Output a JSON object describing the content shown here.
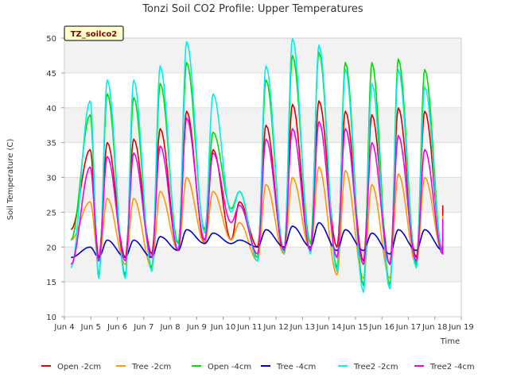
{
  "chart_data": {
    "type": "line",
    "title": "Tonzi Soil CO2 Profile: Upper Temperatures",
    "xlabel": "Time",
    "ylabel": "Soil Temperature (C)",
    "tag": "TZ_soilco2",
    "xlim": [
      4,
      19
    ],
    "ylim": [
      10,
      50
    ],
    "xticks": [
      4,
      5,
      6,
      7,
      8,
      9,
      10,
      11,
      12,
      13,
      14,
      15,
      16,
      17,
      18,
      19
    ],
    "xtick_labels": [
      "Jun 4",
      "Jun 5",
      "Jun 6",
      "Jun 7",
      "Jun 8",
      "Jun 9",
      "Jun 10",
      "Jun 11",
      "Jun 12",
      "Jun 13",
      "Jun 14",
      "Jun 15",
      "Jun 16",
      "Jun 17",
      "Jun 18",
      "Jun 19"
    ],
    "yticks": [
      10,
      15,
      20,
      25,
      30,
      35,
      40,
      45,
      50
    ],
    "grid": "horizontal bands",
    "legend_position": "bottom",
    "days": [
      4.25,
      5,
      6,
      7,
      8,
      9,
      10,
      11,
      12,
      13,
      14,
      15,
      16,
      17,
      18,
      18.3
    ],
    "series": [
      {
        "name": "Open -2cm",
        "color": "#dd0000",
        "lows": [
          22.5,
          18.5,
          18.5,
          19,
          19.5,
          20.5,
          21,
          20,
          19,
          19.5,
          20,
          18,
          17.5,
          18.5,
          19.5,
          26
        ],
        "highs": [
          34,
          35,
          35.5,
          37,
          39.5,
          34,
          26.5,
          37.5,
          40.5,
          41,
          39.5,
          39,
          40,
          39.5
        ]
      },
      {
        "name": "Tree -2cm",
        "color": "#ff9900",
        "lows": [
          21,
          18,
          17.5,
          17,
          19.5,
          20.5,
          21,
          18,
          19,
          19.5,
          16,
          15.5,
          15.5,
          17.5,
          19,
          24.5
        ],
        "highs": [
          26.5,
          27,
          27,
          28,
          30,
          28,
          23.5,
          29,
          30,
          31.5,
          31,
          29,
          30.5,
          30
        ]
      },
      {
        "name": "Open -4cm",
        "color": "#00dd00",
        "lows": [
          21,
          16,
          16,
          17,
          20.5,
          22.5,
          25.5,
          18.5,
          19.5,
          20.5,
          17,
          14.5,
          14.5,
          17.5,
          19,
          20.5
        ],
        "highs": [
          39,
          42,
          41.5,
          43.5,
          46.5,
          36.5,
          28,
          44,
          47.5,
          48,
          46.5,
          46.5,
          47,
          45.5
        ]
      },
      {
        "name": "Tree -4cm",
        "color": "#0000cc",
        "lows": [
          18.5,
          18.5,
          18.5,
          18.5,
          19.5,
          20.5,
          20.5,
          20,
          20,
          20,
          19.5,
          19.5,
          19,
          19.5,
          19.5,
          21
        ],
        "highs": [
          20,
          21,
          21,
          21.5,
          22.5,
          22,
          21,
          22.5,
          23,
          23.5,
          22.5,
          22,
          22.5,
          22.5
        ]
      },
      {
        "name": "Tree2 -2cm",
        "color": "#00eeee",
        "lows": [
          17,
          15.5,
          15.5,
          16.5,
          19.5,
          22,
          25,
          18,
          19,
          19,
          16.5,
          13.5,
          14,
          17,
          19,
          20
        ],
        "highs": [
          41,
          44,
          44,
          46,
          49.5,
          42,
          28,
          46,
          50,
          49,
          45.5,
          43.5,
          45.5,
          43
        ]
      },
      {
        "name": "Tree2 -4cm",
        "color": "#ee00ee",
        "lows": [
          17.5,
          18,
          18,
          18.5,
          19.5,
          21,
          23.5,
          19,
          19.5,
          19.5,
          18.5,
          17.5,
          17.5,
          18,
          19,
          24
        ],
        "highs": [
          31.5,
          33,
          33.5,
          34.5,
          38.5,
          33.5,
          26,
          35.5,
          37,
          38,
          37,
          35,
          36,
          34
        ]
      }
    ]
  }
}
